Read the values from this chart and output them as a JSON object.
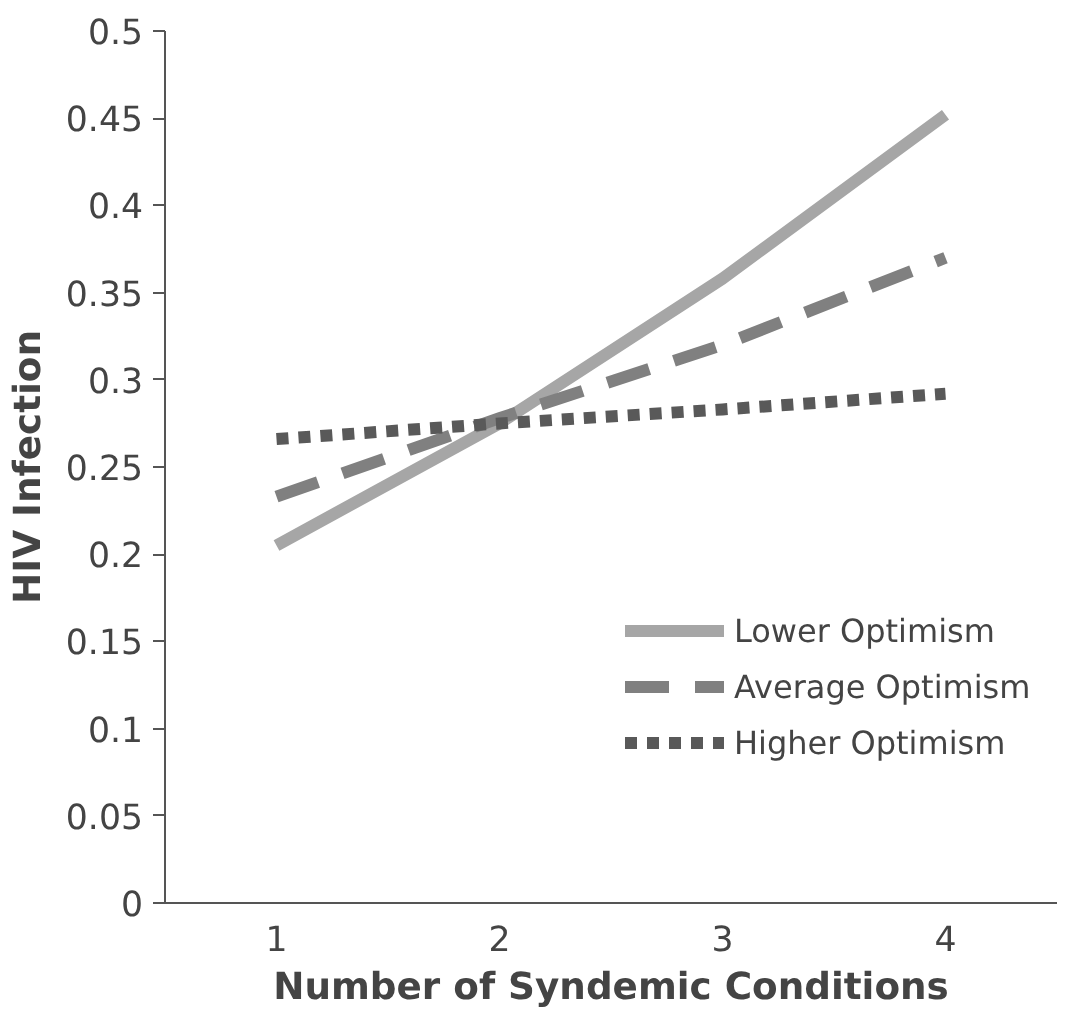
{
  "chart_data": {
    "type": "line",
    "xlabel": "Number of Syndemic Conditions",
    "ylabel": "HIV Infection",
    "categories": [
      "1",
      "2",
      "3",
      "4"
    ],
    "series": [
      {
        "name": "Lower Optimism",
        "color": "#a6a6a6",
        "line_style": "solid",
        "values": [
          0.205,
          0.275,
          0.358,
          0.452
        ]
      },
      {
        "name": "Average Optimism",
        "color": "#808080",
        "line_style": "dashed",
        "values": [
          0.233,
          0.278,
          0.32,
          0.37
        ]
      },
      {
        "name": "Higher Optimism",
        "color": "#595959",
        "line_style": "dotted",
        "values": [
          0.266,
          0.275,
          0.283,
          0.292
        ]
      }
    ],
    "ylim": [
      0,
      0.5
    ],
    "yticks": [
      0,
      0.05,
      0.1,
      0.15,
      0.2,
      0.25,
      0.3,
      0.35,
      0.4,
      0.45,
      0.5
    ],
    "grid": false,
    "legend": "right"
  }
}
